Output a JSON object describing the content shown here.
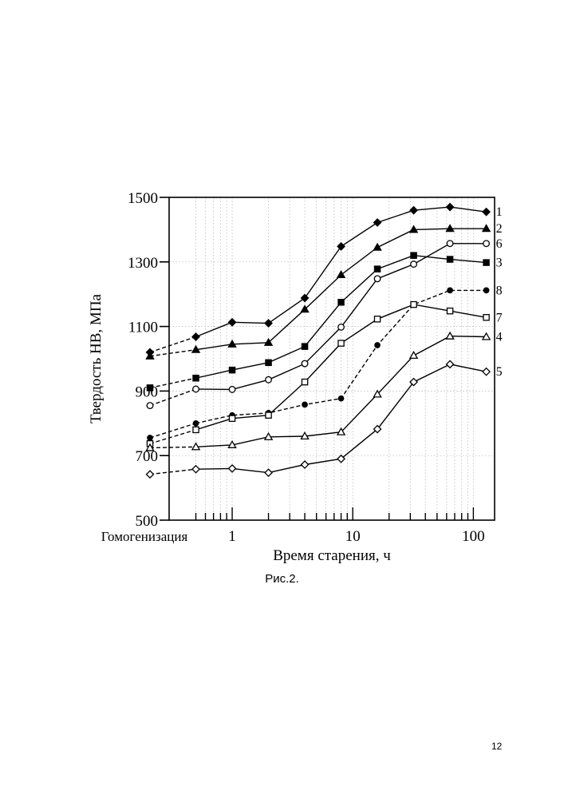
{
  "chart_data": {
    "type": "line",
    "xlabel": "Время старения, ч",
    "ylabel": "Твердость HB, МПа",
    "x_scale": "log",
    "xlim": [
      0.3,
      150
    ],
    "ylim": [
      500,
      1500
    ],
    "x_ticks": [
      "1",
      "10",
      "100"
    ],
    "x_extra_label": "Гомогенизация",
    "y_ticks": [
      "500",
      "700",
      "900",
      "1100",
      "1300",
      "1500"
    ],
    "grid": true,
    "legend": "right, numbers at line ends",
    "colors": {
      "line": "#000000",
      "grid": "#c4c4c4",
      "background": "#ffffff"
    },
    "x_homogenization": 0.3,
    "x": [
      0.5,
      1,
      2,
      4,
      8,
      16,
      32,
      64,
      128
    ],
    "series": [
      {
        "name": "1",
        "marker": "diamond-filled",
        "start": 1020,
        "values": [
          1068,
          1113,
          1110,
          1188,
          1348,
          1422,
          1460,
          1470,
          1455
        ]
      },
      {
        "name": "2",
        "marker": "triangle-filled",
        "start": 1008,
        "values": [
          1028,
          1045,
          1050,
          1153,
          1260,
          1345,
          1400,
          1403,
          1403
        ]
      },
      {
        "name": "6",
        "marker": "circle-open",
        "start": 855,
        "values": [
          906,
          905,
          935,
          985,
          1098,
          1248,
          1293,
          1357,
          1357
        ]
      },
      {
        "name": "3",
        "marker": "square-filled",
        "start": 910,
        "values": [
          940,
          965,
          988,
          1038,
          1175,
          1278,
          1320,
          1308,
          1298
        ]
      },
      {
        "name": "8",
        "marker": "circle-filled",
        "dashed": true,
        "start": 755,
        "values": [
          800,
          825,
          832,
          858,
          877,
          1042,
          1168,
          1212,
          1212
        ]
      },
      {
        "name": "7",
        "marker": "square-open",
        "start": 737,
        "values": [
          780,
          815,
          825,
          928,
          1048,
          1123,
          1168,
          1148,
          1128
        ]
      },
      {
        "name": "4",
        "marker": "triangle-open",
        "start": 724,
        "values": [
          727,
          733,
          758,
          760,
          773,
          890,
          1010,
          1070,
          1068
        ]
      },
      {
        "name": "5",
        "marker": "diamond-open",
        "start": 642,
        "values": [
          658,
          660,
          647,
          672,
          690,
          782,
          928,
          983,
          960
        ]
      }
    ]
  },
  "figure": {
    "caption": "Рис.2."
  },
  "page": {
    "number": "12"
  }
}
